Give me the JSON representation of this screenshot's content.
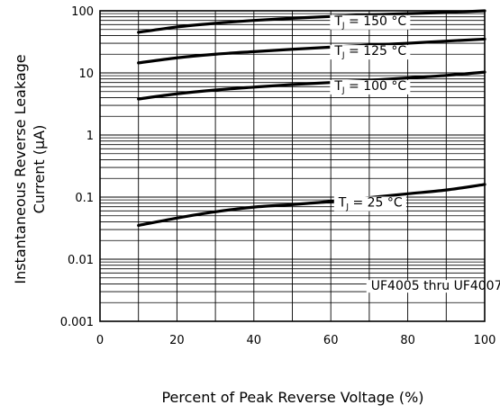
{
  "chart_data": {
    "type": "line",
    "xlabel": "Percent of Peak Reverse Voltage (%)",
    "ylabel_line1": "Instantaneous Reverse Leakage",
    "ylabel_line2": "Current (µA)",
    "xlim": [
      0,
      100
    ],
    "ylim": [
      0.001,
      100
    ],
    "yscale": "log",
    "grid": true,
    "x_ticks": [
      "0",
      "20",
      "40",
      "60",
      "80",
      "100"
    ],
    "y_ticks": [
      "0.001",
      "0.01",
      "0.1",
      "1",
      "10",
      "100"
    ],
    "annotation": "UF4005 thru UF4007",
    "series": [
      {
        "name": "TJ = 150 °C",
        "label_main": "T",
        "label_sub": "J",
        "label_rest": " = 150 °C",
        "x": [
          10,
          20,
          30,
          40,
          50,
          60,
          70,
          80,
          90,
          100
        ],
        "y": [
          45,
          55,
          63,
          70,
          76,
          81,
          86,
          90,
          94,
          100
        ]
      },
      {
        "name": "TJ = 125 °C",
        "label_main": "T",
        "label_sub": "J",
        "label_rest": " = 125 °C",
        "x": [
          10,
          20,
          30,
          40,
          50,
          60,
          70,
          80,
          90,
          100
        ],
        "y": [
          14.5,
          17.5,
          20,
          22,
          24,
          26,
          28,
          30,
          32.5,
          35
        ]
      },
      {
        "name": "TJ = 100 °C",
        "label_main": "T",
        "label_sub": "J",
        "label_rest": " = 100 °C",
        "x": [
          10,
          20,
          30,
          40,
          50,
          60,
          70,
          80,
          90,
          100
        ],
        "y": [
          3.8,
          4.6,
          5.3,
          5.9,
          6.5,
          7.0,
          7.6,
          8.3,
          9.1,
          10.3
        ]
      },
      {
        "name": "TJ = 25 °C",
        "label_main": "T",
        "label_sub": "J",
        "label_rest": " = 25 °C",
        "x": [
          10,
          20,
          30,
          40,
          50,
          60,
          70,
          80,
          90,
          100
        ],
        "y": [
          0.035,
          0.046,
          0.058,
          0.069,
          0.076,
          0.085,
          0.098,
          0.113,
          0.13,
          0.16
        ]
      }
    ]
  }
}
